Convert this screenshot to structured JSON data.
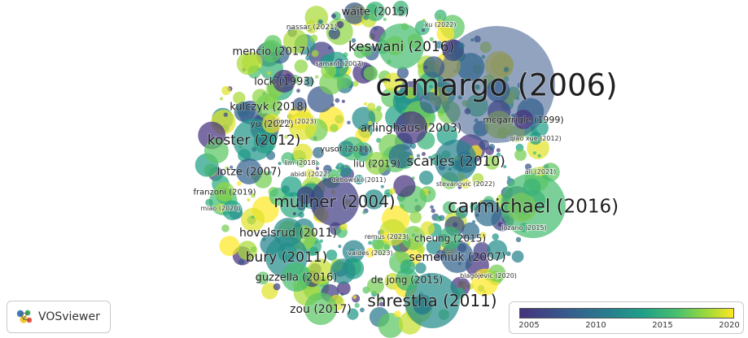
{
  "network": {
    "labels": [
      {
        "text": "camargo (2006)",
        "year": 2006,
        "size": "xl"
      },
      {
        "text": "carmichael (2016)",
        "year": 2016,
        "size": "l"
      },
      {
        "text": "mullner (2004)",
        "year": 2004,
        "size": "l"
      },
      {
        "text": "shrestha (2011)",
        "year": 2011,
        "size": "l"
      },
      {
        "text": "keswani (2016)",
        "year": 2016,
        "size": "m"
      },
      {
        "text": "koster (2012)",
        "year": 2012,
        "size": "m"
      },
      {
        "text": "scarles (2010)",
        "year": 2010,
        "size": "m"
      },
      {
        "text": "bury (2011)",
        "year": 2011,
        "size": "m"
      },
      {
        "text": "arlinghaus (2003)",
        "year": 2003,
        "size": "ms"
      },
      {
        "text": "hovelsrud (2011)",
        "year": 2011,
        "size": "ms"
      },
      {
        "text": "semeniuk (2007)",
        "year": 2007,
        "size": "ms"
      },
      {
        "text": "zou (2017)",
        "year": 2017,
        "size": "ms"
      },
      {
        "text": "guzzella (2016)",
        "year": 2016,
        "size": "s"
      },
      {
        "text": "mencio (2017)",
        "year": 2017,
        "size": "s"
      },
      {
        "text": "waite (2015)",
        "year": 2015,
        "size": "s"
      },
      {
        "text": "lotze (2007)",
        "year": 2007,
        "size": "s"
      },
      {
        "text": "kulczyk (2018)",
        "year": 2018,
        "size": "s"
      },
      {
        "text": "lock (1993)",
        "year": 1993,
        "size": "s"
      },
      {
        "text": "cheung (2015)",
        "year": 2015,
        "size": "s"
      },
      {
        "text": "de jong (2015)",
        "year": 2015,
        "size": "s"
      },
      {
        "text": "liu (2019)",
        "year": 2019,
        "size": "s"
      },
      {
        "text": "mcgarrigle (1999)",
        "year": 1999,
        "size": "xs"
      },
      {
        "text": "yu (2022)",
        "year": 2022,
        "size": "xs"
      },
      {
        "text": "franzoni (2019)",
        "year": 2019,
        "size": "xs"
      },
      {
        "text": "yusof (2011)",
        "year": 2011,
        "size": "xs"
      },
      {
        "text": "nassar (2021)",
        "year": 2021,
        "size": "xxs"
      },
      {
        "text": "xu (2022)",
        "year": 2022,
        "size": "xxs"
      },
      {
        "text": "samant (2007)",
        "year": 2007,
        "size": "xxs"
      },
      {
        "text": "bonn (2023)",
        "year": 2023,
        "size": "xxs"
      },
      {
        "text": "qiao xue (2012)",
        "year": 2012,
        "size": "xxs"
      },
      {
        "text": "lim (2018)",
        "year": 2018,
        "size": "xxs"
      },
      {
        "text": "abidi (2022)",
        "year": 2022,
        "size": "xxs"
      },
      {
        "text": "debowski (2011)",
        "year": 2011,
        "size": "xxs"
      },
      {
        "text": "stevanovic (2022)",
        "year": 2022,
        "size": "xxs"
      },
      {
        "text": "ali (2021)",
        "year": 2021,
        "size": "xxs"
      },
      {
        "text": "miao (2020)",
        "year": 2020,
        "size": "xxs"
      },
      {
        "text": "lozano (2015)",
        "year": 2015,
        "size": "xxs"
      },
      {
        "text": "remus (2023)",
        "year": 2023,
        "size": "xxs"
      },
      {
        "text": "valdes (2023)",
        "year": 2023,
        "size": "xxs"
      },
      {
        "text": "blagojevic (2020)",
        "year": 2020,
        "size": "xxs"
      }
    ]
  },
  "logo": {
    "text": "VOSviewer",
    "colors": [
      "#2a6db5",
      "#2fa84f",
      "#f0c419",
      "#e8412c"
    ]
  },
  "legend": {
    "ticks": [
      "2005",
      "2010",
      "2015",
      "2020"
    ],
    "range": [
      2003,
      2023
    ],
    "colors": [
      "#46327e",
      "#365c8d",
      "#277f8e",
      "#1fa187",
      "#4ac16d",
      "#a0da39",
      "#fde725"
    ]
  }
}
